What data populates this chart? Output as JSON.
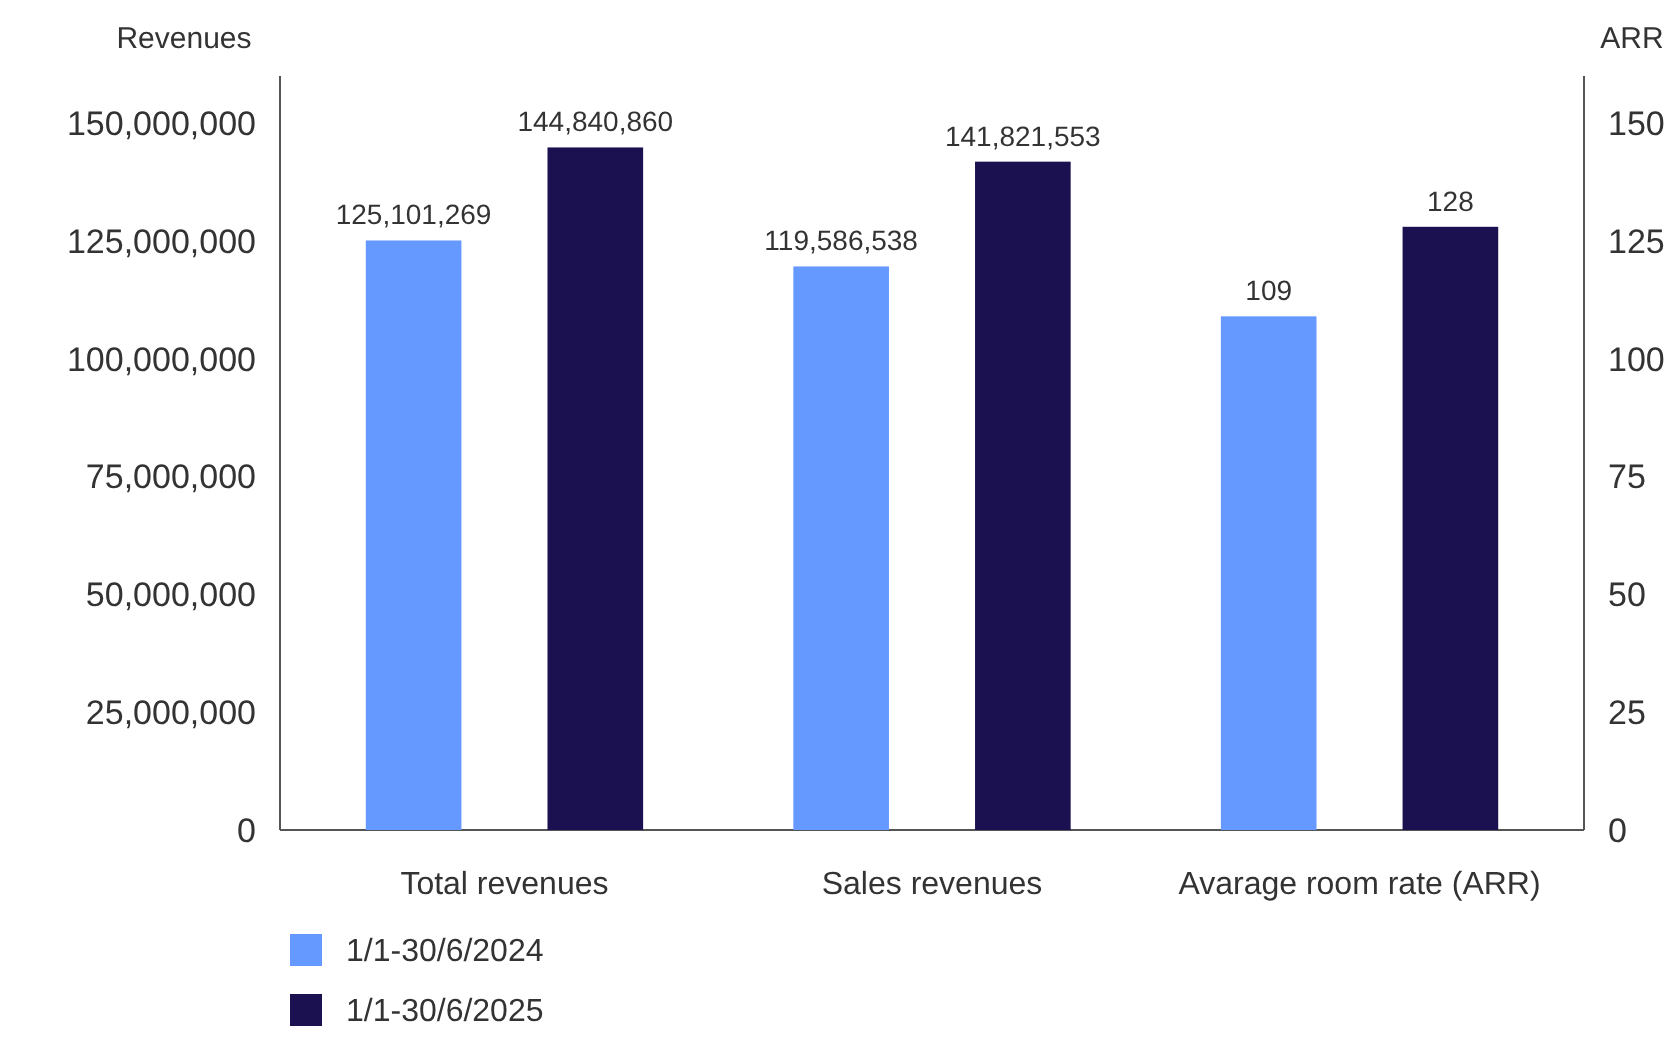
{
  "chart_data": {
    "type": "bar",
    "ylabel": "Revenues",
    "y2label": "ARR",
    "categories": [
      "Total revenues",
      "Sales revenues",
      "Avarage room rate (ARR)"
    ],
    "series": [
      {
        "name": "1/1-30/6/2024",
        "color": "#6699ff",
        "values": [
          125101269,
          119586538,
          null
        ],
        "value_labels": [
          "125,101,269",
          "119,586,538",
          null
        ]
      },
      {
        "name": "1/1-30/6/2025",
        "color": "#1b1150",
        "values": [
          144840860,
          141821553,
          null
        ],
        "value_labels": [
          "144,840,860",
          "141,821,553",
          null
        ]
      },
      {
        "color": "#6699ff",
        "values": [
          null,
          null,
          109
        ],
        "axis": "y2",
        "value_labels": [
          null,
          null,
          "109"
        ]
      },
      {
        "color": "#1b1150",
        "values": [
          null,
          null,
          128
        ],
        "axis": "y2",
        "value_labels": [
          null,
          null,
          "128"
        ]
      }
    ],
    "ylim": [
      0,
      160000000
    ],
    "yticks": [
      {
        "value": 0,
        "label": "0"
      },
      {
        "value": 25000000,
        "label": "25,000,000"
      },
      {
        "value": 50000000,
        "label": "50,000,000"
      },
      {
        "value": 75000000,
        "label": "75,000,000"
      },
      {
        "value": 100000000,
        "label": "100,000,000"
      },
      {
        "value": 125000000,
        "label": "125,000,000"
      },
      {
        "value": 150000000,
        "label": "150,000,000"
      }
    ],
    "y2lim": [
      0,
      160
    ],
    "y2ticks": [
      0,
      25,
      50,
      75,
      100,
      125,
      150
    ],
    "grid": false,
    "legend": "bottom left"
  }
}
